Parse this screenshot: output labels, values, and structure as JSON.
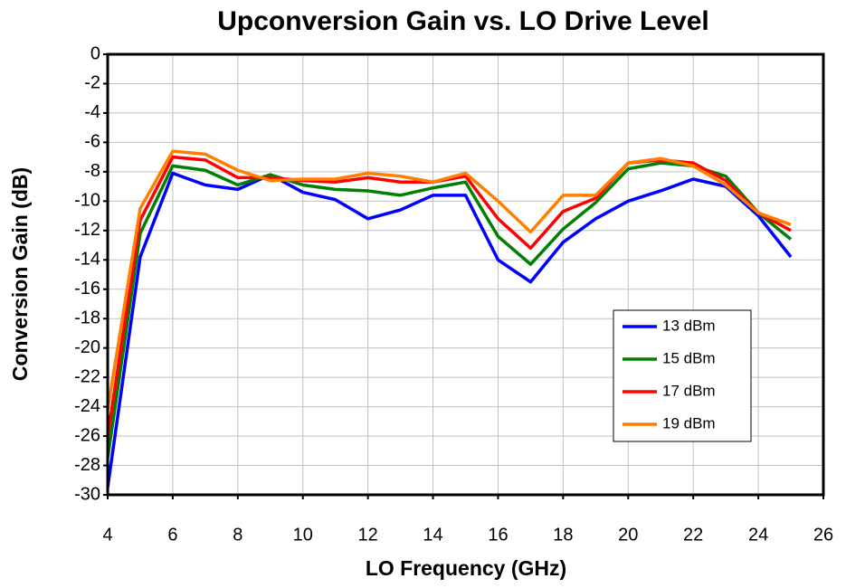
{
  "chart_data": {
    "type": "line",
    "title": "Upconversion Gain vs. LO Drive Level",
    "x_label": "LO Frequency (GHz)",
    "y_label": "Conversion Gain (dB)",
    "x": [
      4,
      5,
      6,
      7,
      8,
      9,
      10,
      11,
      12,
      13,
      14,
      15,
      16,
      17,
      18,
      19,
      20,
      21,
      22,
      23,
      24,
      25
    ],
    "series": [
      {
        "name": "13 dBm",
        "color": "#0000ff",
        "values": [
          -29.5,
          -13.8,
          -8.1,
          -8.9,
          -9.2,
          -8.2,
          -9.4,
          -9.9,
          -11.2,
          -10.6,
          -9.6,
          -9.6,
          -14.0,
          -15.5,
          -12.8,
          -11.2,
          -10.0,
          -9.3,
          -8.5,
          -9.0,
          -11.0,
          -13.8
        ]
      },
      {
        "name": "15 dBm",
        "color": "#008000",
        "values": [
          -27.5,
          -12.2,
          -7.6,
          -7.9,
          -8.9,
          -8.2,
          -8.9,
          -9.2,
          -9.3,
          -9.6,
          -9.1,
          -8.7,
          -12.4,
          -14.3,
          -11.9,
          -10.1,
          -7.8,
          -7.4,
          -7.6,
          -8.3,
          -10.8,
          -12.6
        ]
      },
      {
        "name": "17 dBm",
        "color": "#ff0000",
        "values": [
          -26.0,
          -11.3,
          -7.0,
          -7.2,
          -8.4,
          -8.4,
          -8.6,
          -8.7,
          -8.4,
          -8.7,
          -8.7,
          -8.3,
          -11.2,
          -13.2,
          -10.7,
          -9.8,
          -7.4,
          -7.2,
          -7.4,
          -8.6,
          -10.8,
          -12.0
        ]
      },
      {
        "name": "19 dBm",
        "color": "#ff8000",
        "values": [
          -24.2,
          -10.5,
          -6.6,
          -6.8,
          -7.9,
          -8.6,
          -8.5,
          -8.5,
          -8.1,
          -8.3,
          -8.7,
          -8.1,
          -10.0,
          -12.1,
          -9.6,
          -9.6,
          -7.4,
          -7.1,
          -7.6,
          -8.9,
          -10.8,
          -11.6
        ]
      }
    ],
    "xlim": [
      4,
      26
    ],
    "xticks": [
      4,
      6,
      8,
      10,
      12,
      14,
      16,
      18,
      20,
      22,
      24,
      26
    ],
    "ylim": [
      -30,
      0
    ],
    "yticks": [
      0,
      -2,
      -4,
      -6,
      -8,
      -10,
      -12,
      -14,
      -16,
      -18,
      -20,
      -22,
      -24,
      -26,
      -28,
      -30
    ],
    "grid": true,
    "legend": "right"
  }
}
